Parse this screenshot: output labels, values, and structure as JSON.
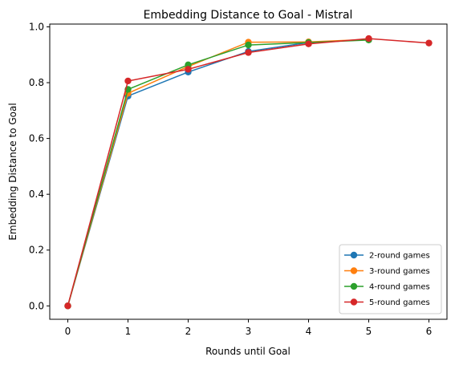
{
  "chart_data": {
    "type": "line",
    "title": "Embedding Distance to Goal - Mistral",
    "xlabel": "Rounds until Goal",
    "ylabel": "Embedding Distance to Goal",
    "xlim": [
      -0.3,
      6.3
    ],
    "ylim": [
      -0.048,
      1.01
    ],
    "xticks": [
      0,
      1,
      2,
      3,
      4,
      5,
      6
    ],
    "xtick_labels": [
      "0",
      "1",
      "2",
      "3",
      "4",
      "5",
      "6"
    ],
    "yticks": [
      0.0,
      0.2,
      0.4,
      0.6,
      0.8,
      1.0
    ],
    "ytick_labels": [
      "0.0",
      "0.2",
      "0.4",
      "0.6",
      "0.8",
      "1.0"
    ],
    "grid": false,
    "legend_position": "bottom-right",
    "series": [
      {
        "name": "2-round games",
        "color": "#1f77b4",
        "x": [
          0,
          1,
          2,
          3,
          4
        ],
        "y": [
          0.0,
          0.752,
          0.838,
          0.912,
          0.944
        ]
      },
      {
        "name": "3-round games",
        "color": "#ff7f0e",
        "x": [
          0,
          1,
          2,
          3,
          4,
          5
        ],
        "y": [
          0.0,
          0.762,
          0.858,
          0.945,
          0.946,
          0.955
        ]
      },
      {
        "name": "4-round games",
        "color": "#2ca02c",
        "x": [
          0,
          1,
          2,
          3,
          4,
          5
        ],
        "y": [
          0.0,
          0.776,
          0.864,
          0.935,
          0.944,
          0.953
        ]
      },
      {
        "name": "5-round games",
        "color": "#d62728",
        "x": [
          0,
          1,
          2,
          3,
          4,
          5,
          6
        ],
        "y": [
          0.0,
          0.806,
          0.848,
          0.908,
          0.939,
          0.958,
          0.942
        ]
      }
    ]
  }
}
